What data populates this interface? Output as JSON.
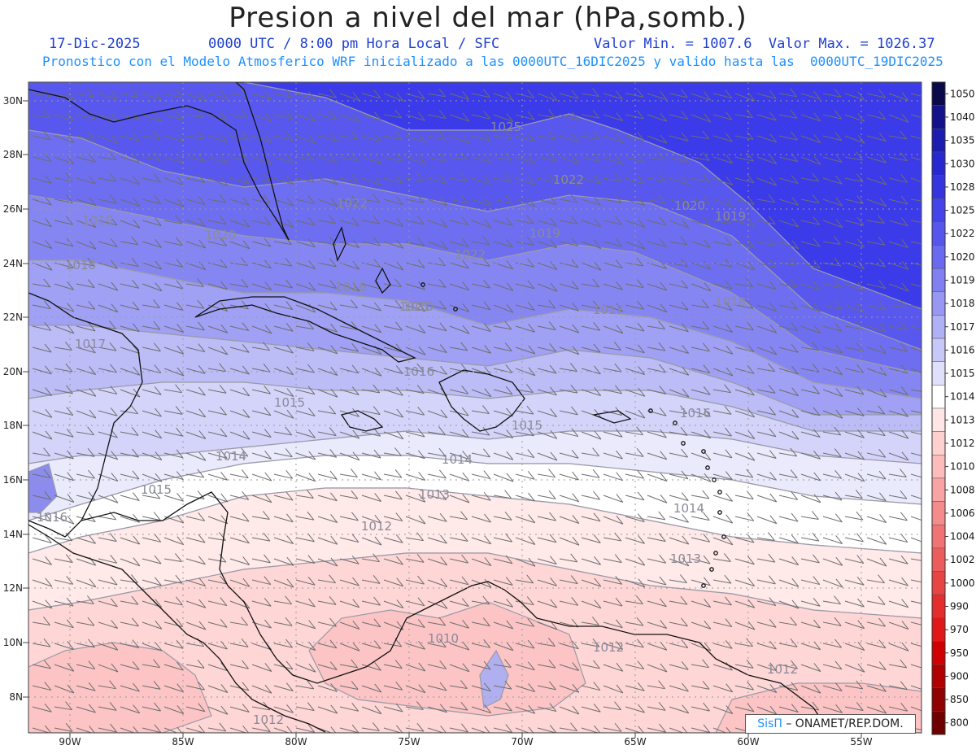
{
  "header": {
    "title": "Presion a nivel del mar (hPa,somb.)",
    "date": "17-Dic-2025",
    "time": "0000 UTC / 8:00 pm Hora Local / SFC",
    "range": "Valor Min. = 1007.6  Valor Max. = 1026.37",
    "description": "Pronostico con el Modelo Atmosferico WRF inicializado a las 0000UTC_16DIC2025 y valido hasta las  0000UTC_19DIC2025"
  },
  "axes": {
    "lat_labels": [
      "30N",
      "28N",
      "26N",
      "24N",
      "22N",
      "20N",
      "18N",
      "16N",
      "14N",
      "12N",
      "10N",
      "8N"
    ],
    "lon_labels": [
      "90W",
      "85W",
      "80W",
      "75W",
      "70W",
      "65W",
      "60W",
      "55W"
    ]
  },
  "colorbar": {
    "levels": [
      "1050",
      "1040",
      "1035",
      "1030",
      "1028",
      "1025",
      "1022",
      "1020",
      "1019",
      "1018",
      "1017",
      "1016",
      "1015",
      "1014",
      "1013",
      "1012",
      "1010",
      "1008",
      "1006",
      "1004",
      "1002",
      "1000",
      "990",
      "970",
      "950",
      "900",
      "850",
      "800"
    ],
    "colors": [
      "#0a0a4a",
      "#12128a",
      "#1c1cb0",
      "#2828d0",
      "#3535e0",
      "#4444ea",
      "#5656ee",
      "#6a6af0",
      "#8080f2",
      "#9898f4",
      "#b0b0f6",
      "#c8c8f8",
      "#e0e0fb",
      "#ffffff",
      "#ffe6e6",
      "#ffd0d0",
      "#fcbcbc",
      "#f8a4a4",
      "#f48c8c",
      "#f07474",
      "#ec5c5c",
      "#e84444",
      "#e42e2e",
      "#e01818",
      "#d00000",
      "#b00000",
      "#900000",
      "#700000"
    ]
  },
  "contour_labels": [
    "1025",
    "1022",
    "1022",
    "1020",
    "1020",
    "1019",
    "1019",
    "1019",
    "1018",
    "1018",
    "1017",
    "1017",
    "1016",
    "1016",
    "1016",
    "1015",
    "1015",
    "1015",
    "1014",
    "1014",
    "1014",
    "1013",
    "1013",
    "1012",
    "1012",
    "1012",
    "1012",
    "1010",
    "1010",
    "1022",
    "1021",
    "1016"
  ],
  "credit": {
    "logo": "SisΠ",
    "text": "– ONAMET/REP.DOM."
  }
}
